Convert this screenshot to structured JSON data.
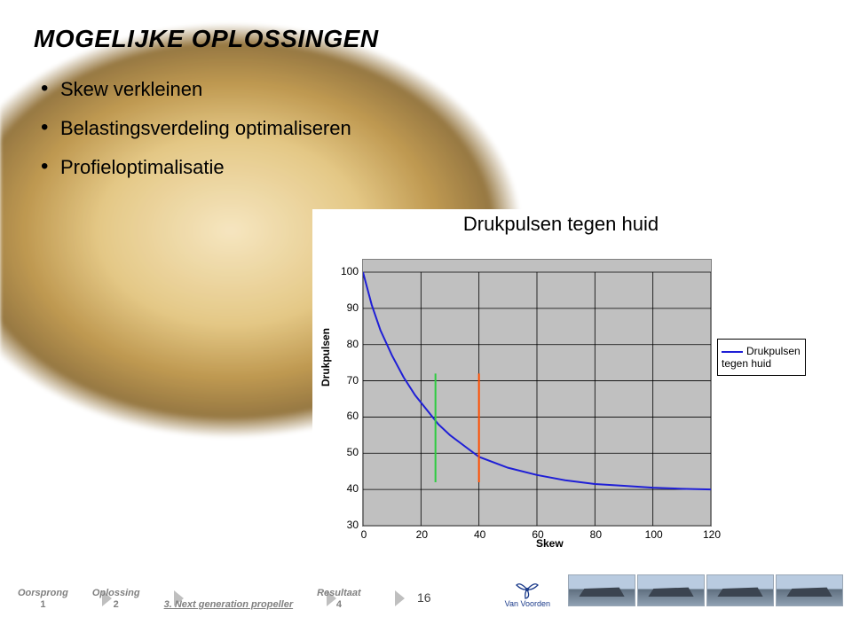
{
  "title": "MOGELIJKE OPLOSSINGEN",
  "bullets": [
    "Skew verkleinen",
    "Belastingsverdeling optimaliseren",
    "Profieloptimalisatie"
  ],
  "chart": {
    "type": "line",
    "title": "Drukpulsen tegen huid",
    "xlabel": "Skew",
    "ylabel": "Drukpulsen",
    "series_name": "Drukpulsen tegen huid",
    "series_color": "#1f1fd6",
    "background_color": "#c0c0c0",
    "grid_color": "#000000",
    "xlim": [
      0,
      120
    ],
    "ylim": [
      30,
      100
    ],
    "xticks": [
      0,
      20,
      40,
      60,
      80,
      100,
      120
    ],
    "yticks": [
      30,
      40,
      50,
      60,
      70,
      80,
      90,
      100
    ],
    "data_x": [
      0,
      3,
      6,
      10,
      14,
      18,
      22,
      26,
      30,
      35,
      40,
      50,
      60,
      70,
      80,
      90,
      100,
      110,
      120
    ],
    "data_y": [
      100,
      91,
      84,
      77,
      71,
      66,
      62,
      58,
      55,
      52,
      49,
      46,
      44,
      42.5,
      41.5,
      41,
      40.5,
      40.2,
      40
    ],
    "markers": [
      {
        "x": 25,
        "color": "#2ecc40",
        "y0": 42,
        "y1": 72
      },
      {
        "x": 40,
        "color": "#ff4d00",
        "y0": 42,
        "y1": 72
      }
    ],
    "line_width": 2,
    "title_fontsize": 22,
    "tick_fontsize": 12
  },
  "breadcrumbs": [
    {
      "label": "Oorsprong",
      "num": "1"
    },
    {
      "label": "Oplossing",
      "num": "2"
    },
    {
      "label": "3. Next generation propeller",
      "num": "",
      "active": true
    },
    {
      "label": "Resultaat",
      "num": "4"
    }
  ],
  "page_number": "16",
  "logo_text": "Van Voorden"
}
